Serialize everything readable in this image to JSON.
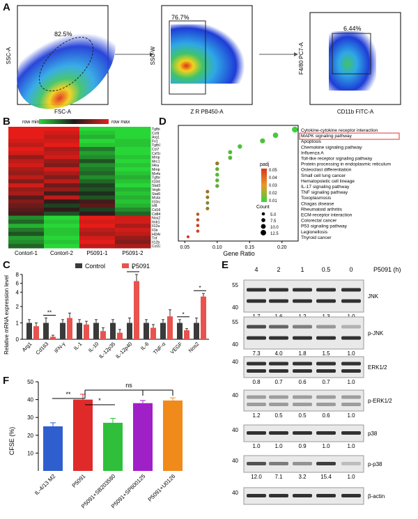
{
  "panels": {
    "A": {
      "letter": "A",
      "plots": [
        {
          "xlabel": "FSC-A",
          "ylabel": "SSC-A",
          "gate": "82.5%"
        },
        {
          "xlabel": "Z R PB450-A",
          "ylabel": "SSC-W",
          "gate": "76.7%"
        },
        {
          "xlabel": "CD11b FITC-A",
          "ylabel": "F4/80 PC7-A",
          "gate": "6.44%"
        }
      ]
    },
    "B": {
      "letter": "B",
      "legend_min": "row min",
      "legend_max": "row max",
      "genes": [
        "Tgfbi",
        "Ccl9",
        "Arg1",
        "Fn1",
        "Tgfb1",
        "Ccl7",
        "Csf1r",
        "Mmp19",
        "Mrc1",
        "Il4ra",
        "Mmp14",
        "Ms4a4a",
        "Tgfbr1",
        "Il10rb",
        "Stat3",
        "Vegfa",
        "Stat6",
        "Ms4a8a",
        "Il10ra",
        "Irf8",
        "Cd163",
        "Cd84",
        "Nos2",
        "Itnb1",
        "Il12a",
        "Il1b",
        "HDAC2",
        "Tnf",
        "Il12b",
        "Ccl22"
      ],
      "samples": [
        "Contorl-1",
        "Contorl-2",
        "P5091-1",
        "P5091-2"
      ],
      "matrix": [
        [
          1,
          1,
          -1,
          -1
        ],
        [
          1,
          0.9,
          -0.9,
          -1
        ],
        [
          1,
          0.8,
          -0.8,
          -1
        ],
        [
          0.9,
          0.9,
          -1,
          -0.9
        ],
        [
          0.8,
          1,
          -0.9,
          -0.9
        ],
        [
          1,
          0.7,
          -0.5,
          -1
        ],
        [
          0.9,
          0.8,
          -0.7,
          -1
        ],
        [
          0.6,
          0.9,
          -0.6,
          -0.9
        ],
        [
          0.8,
          0.6,
          -0.3,
          -1
        ],
        [
          0.9,
          0.5,
          -0.6,
          -0.9
        ],
        [
          0.7,
          0.9,
          -0.5,
          -1
        ],
        [
          0.6,
          0.7,
          -0.4,
          -0.9
        ],
        [
          0.8,
          0.5,
          -0.6,
          -0.8
        ],
        [
          0.5,
          0.8,
          -0.4,
          -0.9
        ],
        [
          0.9,
          0.4,
          -0.2,
          -1
        ],
        [
          0.6,
          0.6,
          -0.3,
          -0.8
        ],
        [
          0.7,
          0.2,
          -0.1,
          -0.9
        ],
        [
          0.3,
          0.8,
          -0.3,
          -0.8
        ],
        [
          0.5,
          0.1,
          0.2,
          -0.9
        ],
        [
          0.4,
          -0.2,
          0.3,
          -0.8
        ],
        [
          0.3,
          0.1,
          -0.2,
          -0.6
        ],
        [
          0.2,
          -0.3,
          0.1,
          -0.4
        ],
        [
          -0.6,
          -1,
          1,
          0.9
        ],
        [
          -0.4,
          -0.9,
          0.9,
          0.9
        ],
        [
          -0.8,
          -1,
          1,
          0.7
        ],
        [
          -0.5,
          -0.9,
          0.8,
          0.9
        ],
        [
          -0.3,
          -0.9,
          0.7,
          0.8
        ],
        [
          -0.7,
          -1,
          0.9,
          0.6
        ],
        [
          -0.6,
          -0.9,
          1,
          0.5
        ],
        [
          -0.4,
          -1,
          0.8,
          0.7
        ]
      ]
    },
    "C": {
      "letter": "C",
      "ylabel": "Relative mRNA expression level",
      "legend": [
        "Control",
        "P5091"
      ],
      "colors": {
        "control": "#3a3a3a",
        "p5091": "#e8534d"
      },
      "genes": [
        "Arg1",
        "Cd163",
        "IFN-γ",
        "IL-1",
        "IL-10",
        "IL-12p35",
        "IL-12p40",
        "IL-6",
        "TNF-α",
        "VEGF",
        "Nos2"
      ],
      "control": [
        1,
        1,
        1,
        1,
        1,
        1,
        1,
        1,
        1,
        1,
        1
      ],
      "p5091": [
        0.8,
        0.15,
        1.3,
        0.9,
        0.5,
        0.4,
        6.5,
        0.7,
        1.4,
        0.55,
        3.0
      ],
      "control_err": [
        0.2,
        0.3,
        0.2,
        0.2,
        0.2,
        0.2,
        0.3,
        0.2,
        0.2,
        0.2,
        0.3
      ],
      "p5091_err": [
        0.2,
        0.1,
        0.3,
        0.2,
        0.2,
        0.2,
        1.5,
        0.2,
        0.4,
        0.1,
        0.7
      ],
      "sig": [
        "",
        "**",
        "",
        "",
        "",
        "",
        "*",
        "",
        "",
        "*",
        "*"
      ],
      "yticks": [
        "0",
        "1",
        "2",
        "4",
        "6",
        "8"
      ]
    },
    "D": {
      "letter": "D",
      "xlabel": "Gene Ratio",
      "xticks": [
        "0.05",
        "0.10",
        "0.15",
        "0.20"
      ],
      "padj_title": "padj",
      "padj_ticks": [
        "0.05",
        "0.04",
        "0.03",
        "0.02",
        "0.01"
      ],
      "count_title": "Count",
      "count_ticks": [
        "5.0",
        "7.5",
        "10.0",
        "12.5"
      ],
      "terms": [
        "Cytokine-cytokine receptor interaction",
        "MAPK signaling pathway",
        "Apoptosis",
        "Chemokine signaling pathway",
        "Influenza A",
        "Toll-like receptor signaling pathway",
        "Protein processing in endoplasmic reticulum",
        "Osteoclast differentiation",
        "Small cell lung cancer",
        "Hematopoietic cell lineage",
        "IL-17 signaling pathway",
        "TNF signaling pathway",
        "Toxoplasmosis",
        "Chagas disease",
        "Rheumatoid arthritis",
        "ECM-receptor interaction",
        "Colorectal cancer",
        "P53 signaling pathway",
        "Legionellosis",
        "Thyroid cancer"
      ],
      "gene_ratio": [
        0.22,
        0.19,
        0.17,
        0.135,
        0.12,
        0.12,
        0.1,
        0.1,
        0.1,
        0.1,
        0.1,
        0.085,
        0.085,
        0.085,
        0.085,
        0.07,
        0.07,
        0.07,
        0.07,
        0.055
      ],
      "count": [
        14,
        12,
        11,
        9,
        8,
        8,
        7,
        7,
        7,
        7,
        7,
        6,
        6,
        6,
        6,
        5,
        5,
        5,
        5,
        4
      ],
      "padj": [
        0.005,
        0.008,
        0.01,
        0.01,
        0.012,
        0.012,
        0.03,
        0.015,
        0.012,
        0.014,
        0.016,
        0.035,
        0.03,
        0.025,
        0.03,
        0.04,
        0.045,
        0.048,
        0.045,
        0.05
      ]
    },
    "E": {
      "letter": "E",
      "header": "P5091 (h)",
      "lanes": [
        "4",
        "2",
        "1",
        "0.5",
        "0"
      ],
      "rows": [
        {
          "label": "JNK",
          "mw": "55",
          "mw2": "40",
          "quant": [
            "1.7",
            "1.6",
            "1.2",
            "1.3",
            "1.0"
          ]
        },
        {
          "label": "p-JNK",
          "mw": "55",
          "mw2": "40",
          "quant": [
            "7.3",
            "4.0",
            "1.8",
            "1.5",
            "1.0"
          ]
        },
        {
          "label": "ERK1/2",
          "mw": "40",
          "mw2": "",
          "quant": [
            "0.8",
            "0.7",
            "0.6",
            "0.7",
            "1.0"
          ]
        },
        {
          "label": "p-ERK1/2",
          "mw": "40",
          "mw2": "",
          "quant": [
            "1.2",
            "0.5",
            "0.5",
            "0.6",
            "1.0"
          ]
        },
        {
          "label": "p38",
          "mw": "40",
          "mw2": "",
          "quant": [
            "1.0",
            "1.0",
            "0.9",
            "1.0",
            "1.0"
          ]
        },
        {
          "label": "p-p38",
          "mw": "40",
          "mw2": "",
          "quant": [
            "12.0",
            "7.1",
            "3.2",
            "15.4",
            "1.0"
          ]
        },
        {
          "label": "β-actin",
          "mw": "40",
          "mw2": "",
          "quant": []
        }
      ]
    },
    "F": {
      "letter": "F",
      "ylabel": "CFSE (%)",
      "yticks": [
        "10",
        "20",
        "30",
        "40",
        "50"
      ],
      "categories": [
        "IL-4/13 M2",
        "P5091",
        "P5091+SB203580",
        "P5091+SP600125",
        "P5091+U0126"
      ],
      "values": [
        25,
        40,
        27,
        38,
        39.5
      ],
      "errors": [
        2,
        3,
        2.5,
        1.5,
        1.5
      ],
      "colors": [
        "#2f5fcf",
        "#e02a2a",
        "#2fbf3a",
        "#a020c8",
        "#f08a1a"
      ],
      "sig": [
        "**",
        "*",
        "ns"
      ]
    }
  },
  "chart_data": [
    {
      "type": "bar",
      "title": "",
      "categories": [
        "Arg1",
        "Cd163",
        "IFN-γ",
        "IL-1",
        "IL-10",
        "IL-12p35",
        "IL-12p40",
        "IL-6",
        "TNF-α",
        "VEGF",
        "Nos2"
      ],
      "series": [
        {
          "name": "Control",
          "values": [
            1,
            1,
            1,
            1,
            1,
            1,
            1,
            1,
            1,
            1,
            1
          ]
        },
        {
          "name": "P5091",
          "values": [
            0.8,
            0.15,
            1.3,
            0.9,
            0.5,
            0.4,
            6.5,
            0.7,
            1.4,
            0.55,
            3.0
          ]
        }
      ],
      "ylabel": "Relative mRNA expression level"
    },
    {
      "type": "scatter",
      "xlabel": "Gene Ratio",
      "xlim": [
        0.05,
        0.22
      ]
    },
    {
      "type": "bar",
      "categories": [
        "IL-4/13 M2",
        "P5091",
        "P5091+SB203580",
        "P5091+SP600125",
        "P5091+U0126"
      ],
      "values": [
        25,
        40,
        27,
        38,
        39.5
      ],
      "ylabel": "CFSE (%)",
      "ylim": [
        0,
        50
      ]
    }
  ]
}
